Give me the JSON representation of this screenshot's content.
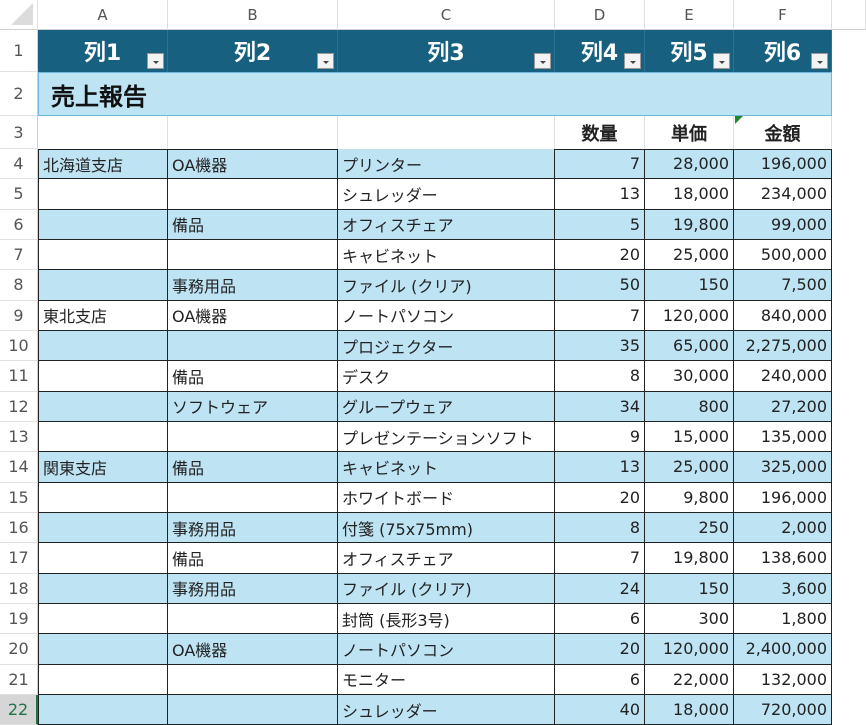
{
  "columns": [
    "A",
    "B",
    "C",
    "D",
    "E",
    "F"
  ],
  "row_numbers": [
    "1",
    "2",
    "3",
    "4",
    "5",
    "6",
    "7",
    "8",
    "9",
    "10",
    "11",
    "12",
    "13",
    "14",
    "15",
    "16",
    "17",
    "18",
    "19",
    "20",
    "21",
    "22"
  ],
  "selected_row": "22",
  "table_headers": [
    "列1",
    "列2",
    "列3",
    "列4",
    "列5",
    "列6"
  ],
  "title": "売上報告",
  "subheaders": [
    "数量",
    "単価",
    "金額"
  ],
  "rows": [
    [
      "北海道支店",
      "OA機器",
      "プリンター",
      "7",
      "28,000",
      "196,000"
    ],
    [
      "",
      "",
      "シュレッダー",
      "13",
      "18,000",
      "234,000"
    ],
    [
      "",
      "備品",
      "オフィスチェア",
      "5",
      "19,800",
      "99,000"
    ],
    [
      "",
      "",
      "キャビネット",
      "20",
      "25,000",
      "500,000"
    ],
    [
      "",
      "事務用品",
      "ファイル (クリア)",
      "50",
      "150",
      "7,500"
    ],
    [
      "東北支店",
      "OA機器",
      "ノートパソコン",
      "7",
      "120,000",
      "840,000"
    ],
    [
      "",
      "",
      "プロジェクター",
      "35",
      "65,000",
      "2,275,000"
    ],
    [
      "",
      "備品",
      "デスク",
      "8",
      "30,000",
      "240,000"
    ],
    [
      "",
      "ソフトウェア",
      "グループウェア",
      "34",
      "800",
      "27,200"
    ],
    [
      "",
      "",
      "プレゼンテーションソフト",
      "9",
      "15,000",
      "135,000"
    ],
    [
      "関東支店",
      "備品",
      "キャビネット",
      "13",
      "25,000",
      "325,000"
    ],
    [
      "",
      "",
      "ホワイトボード",
      "20",
      "9,800",
      "196,000"
    ],
    [
      "",
      "事務用品",
      "付箋 (75x75mm)",
      "8",
      "250",
      "2,000"
    ],
    [
      "",
      "備品",
      "オフィスチェア",
      "7",
      "19,800",
      "138,600"
    ],
    [
      "",
      "事務用品",
      "ファイル (クリア)",
      "24",
      "150",
      "3,600"
    ],
    [
      "",
      "",
      "封筒 (長形3号)",
      "6",
      "300",
      "1,800"
    ],
    [
      "",
      "OA機器",
      "ノートパソコン",
      "20",
      "120,000",
      "2,400,000"
    ],
    [
      "",
      "",
      "モニター",
      "6",
      "22,000",
      "132,000"
    ],
    [
      "",
      "",
      "シュレッダー",
      "40",
      "18,000",
      "720,000"
    ]
  ],
  "colors": {
    "header": "#17607f",
    "band": "#bee4f4",
    "title_band": "#bee4f4",
    "selection": "#217346"
  }
}
